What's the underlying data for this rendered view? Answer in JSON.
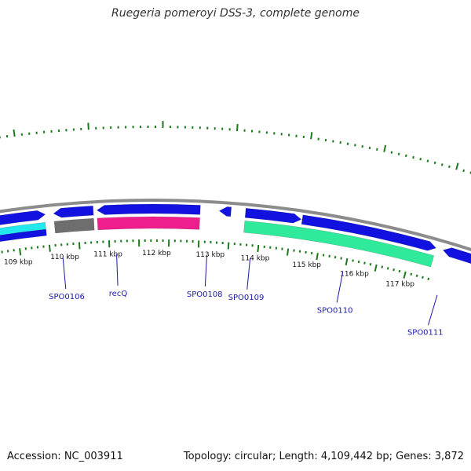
{
  "title": "Ruegeria pomeroyi DSS-3, complete genome",
  "footer": {
    "accession": "Accession: NC_003911",
    "topology": "Topology: circular; Length: 4,109,442 bp; Genes: 3,872"
  },
  "colors": {
    "backbone": "#8c8c8c",
    "tick": "#1a7a1a",
    "cds": "#1212e0",
    "cyan": "#22e8ee",
    "gray_feature": "#6e6e6e",
    "magenta": "#ee1e8c",
    "teal": "#2eea9a",
    "label": "#1a1aa8"
  },
  "kbp_labels": [
    "109 kbp",
    "110 kbp",
    "111 kbp",
    "112 kbp",
    "113 kbp",
    "114 kbp",
    "115 kbp",
    "116 kbp",
    "117 kbp"
  ],
  "genes": [
    "SPO0106",
    "recQ",
    "SPO0108",
    "SPO0109",
    "SPO0110",
    "SPO0111"
  ]
}
